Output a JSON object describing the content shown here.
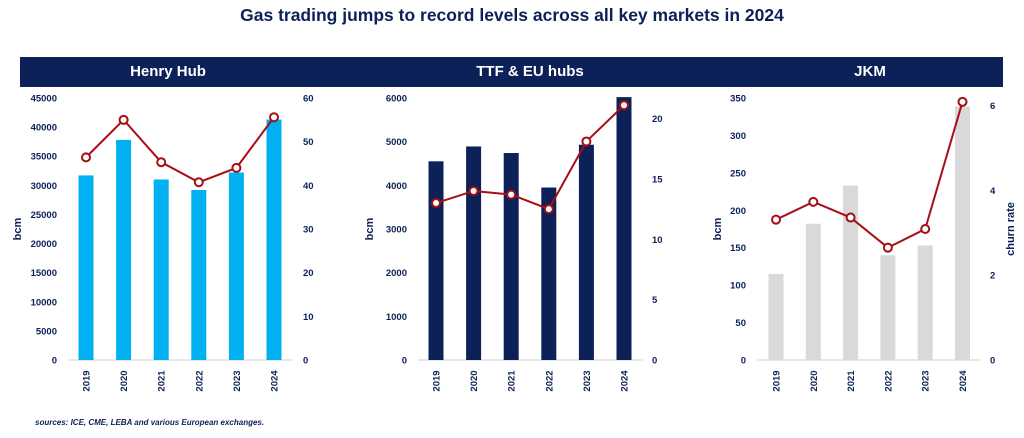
{
  "title": "Gas trading jumps to record levels across all key markets in 2024",
  "source": "sources: ICE, CME, LEBA and various European exchanges.",
  "chart_data": [
    {
      "type": "bar+line",
      "title": "Henry Hub",
      "categories": [
        "2019",
        "2020",
        "2021",
        "2022",
        "2023",
        "2024"
      ],
      "ylabel": "bcm",
      "y2label": "",
      "ylim": [
        0,
        45000
      ],
      "yticks": [
        0,
        5000,
        10000,
        15000,
        20000,
        25000,
        30000,
        35000,
        40000,
        45000
      ],
      "y2lim": [
        0,
        60
      ],
      "y2ticks": [
        0,
        10,
        20,
        30,
        40,
        50,
        60
      ],
      "bar_color": "#00b0f0",
      "line_color": "#a50f15",
      "bars": [
        31700,
        37800,
        31000,
        29200,
        32200,
        41300
      ],
      "line": [
        46.4,
        55.0,
        45.3,
        40.7,
        44.0,
        55.6
      ]
    },
    {
      "type": "bar+line",
      "title": "TTF & EU hubs",
      "categories": [
        "2019",
        "2020",
        "2021",
        "2022",
        "2023",
        "2024"
      ],
      "ylabel": "bcm",
      "y2label": "",
      "ylim": [
        0,
        6000
      ],
      "yticks": [
        0,
        1000,
        2000,
        3000,
        4000,
        5000,
        6000
      ],
      "y2lim": [
        0,
        21.7
      ],
      "y2ticks": [
        0,
        5,
        10,
        15,
        20
      ],
      "bar_color": "#0c2157",
      "line_color": "#a50f15",
      "bars": [
        4550,
        4890,
        4740,
        3950,
        4930,
        6020
      ],
      "line": [
        13.0,
        14.0,
        13.7,
        12.5,
        18.1,
        21.1
      ]
    },
    {
      "type": "bar+line",
      "title": "JKM",
      "categories": [
        "2019",
        "2020",
        "2021",
        "2022",
        "2023",
        "2024"
      ],
      "ylabel": "bcm",
      "y2label": "churn rate",
      "ylim": [
        0,
        350
      ],
      "yticks": [
        0,
        50,
        100,
        150,
        200,
        250,
        300,
        350
      ],
      "y2lim": [
        0,
        6.18
      ],
      "y2ticks": [
        0,
        2,
        4,
        6
      ],
      "bar_color": "#d9d9d9",
      "line_color": "#a50f15",
      "bars": [
        115,
        182,
        233,
        140,
        153,
        339
      ],
      "line": [
        3.31,
        3.73,
        3.36,
        2.65,
        3.09,
        6.09
      ]
    }
  ]
}
